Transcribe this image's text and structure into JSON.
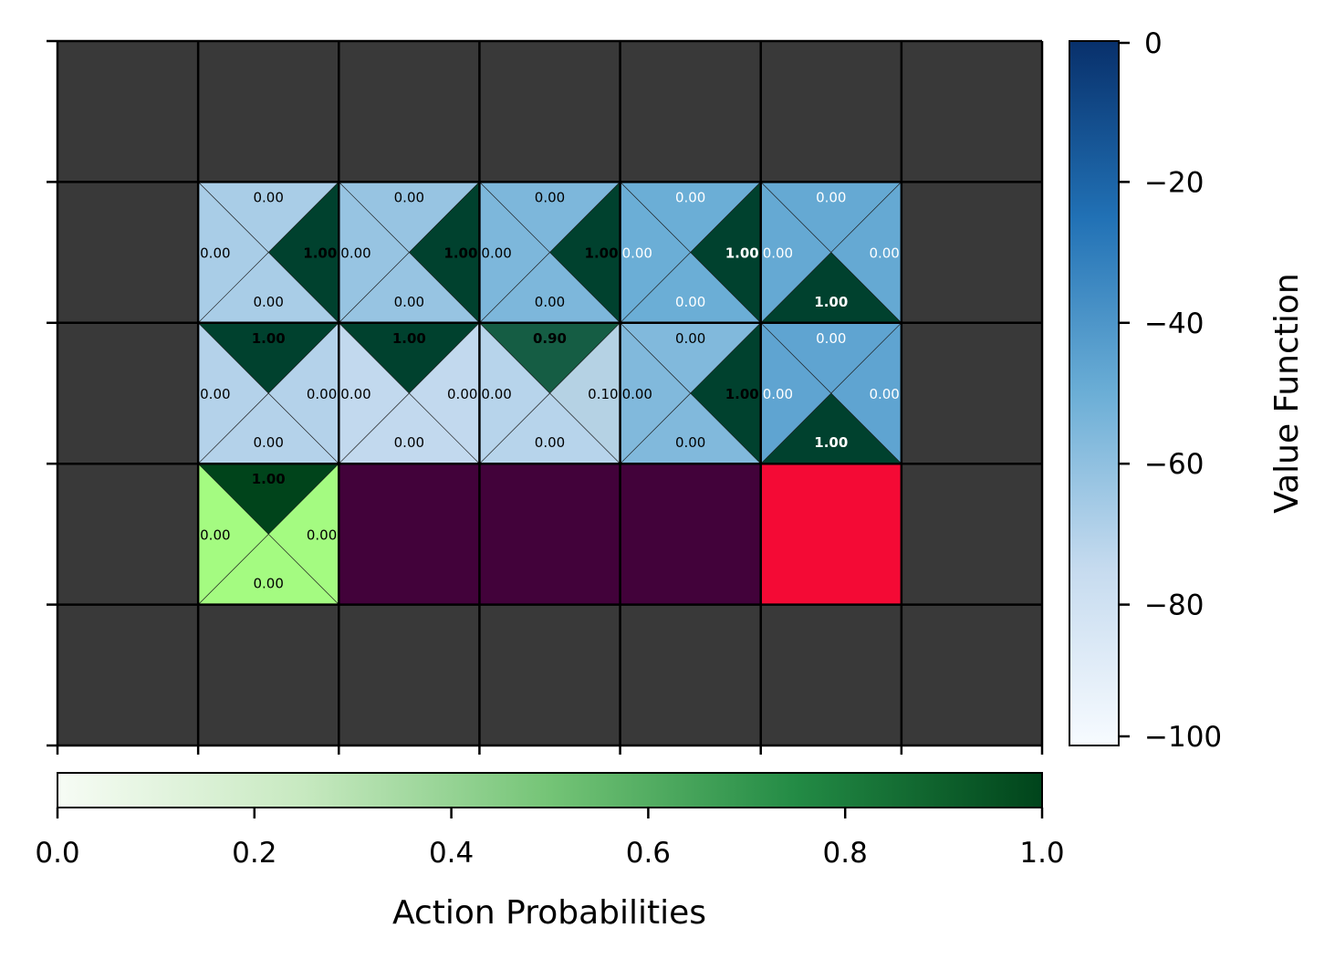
{
  "chart_data": {
    "type": "heatmap",
    "grid": {
      "rows": 5,
      "cols": 7
    },
    "wall_color": "#393939",
    "goal_color": "#f40a35",
    "cliff_color": "#42023a",
    "start_color": "#a4fb81",
    "action_order": [
      "up",
      "right",
      "down",
      "left"
    ],
    "cells": [
      {
        "row": 1,
        "col": 1,
        "kind": "state",
        "value": -67,
        "probs": [
          "0.00",
          "1.00",
          "0.00",
          "0.00"
        ],
        "best": "right"
      },
      {
        "row": 1,
        "col": 2,
        "kind": "state",
        "value": -62,
        "probs": [
          "0.00",
          "1.00",
          "0.00",
          "0.00"
        ],
        "best": "right"
      },
      {
        "row": 1,
        "col": 3,
        "kind": "state",
        "value": -55,
        "probs": [
          "0.00",
          "1.00",
          "0.00",
          "0.00"
        ],
        "best": "right"
      },
      {
        "row": 1,
        "col": 4,
        "kind": "state",
        "value": -50,
        "probs": [
          "0.00",
          "1.00",
          "0.00",
          "0.00"
        ],
        "best": "right"
      },
      {
        "row": 1,
        "col": 5,
        "kind": "state",
        "value": -48,
        "probs": [
          "0.00",
          "0.00",
          "1.00",
          "0.00"
        ],
        "best": "down"
      },
      {
        "row": 2,
        "col": 1,
        "kind": "state",
        "value": -70,
        "probs": [
          "1.00",
          "0.00",
          "0.00",
          "0.00"
        ],
        "best": "up"
      },
      {
        "row": 2,
        "col": 2,
        "kind": "state",
        "value": -74,
        "probs": [
          "1.00",
          "0.00",
          "0.00",
          "0.00"
        ],
        "best": "up"
      },
      {
        "row": 2,
        "col": 3,
        "kind": "state",
        "value": -71,
        "probs": [
          "0.90",
          "0.10",
          "0.00",
          "0.00"
        ],
        "best": "up"
      },
      {
        "row": 2,
        "col": 4,
        "kind": "state",
        "value": -56,
        "probs": [
          "0.00",
          "1.00",
          "0.00",
          "0.00"
        ],
        "best": "right"
      },
      {
        "row": 2,
        "col": 5,
        "kind": "state",
        "value": -46,
        "probs": [
          "0.00",
          "0.00",
          "1.00",
          "0.00"
        ],
        "best": "down"
      },
      {
        "row": 3,
        "col": 1,
        "kind": "start",
        "probs": [
          "1.00",
          "0.00",
          "0.00",
          "0.00"
        ],
        "best": "up"
      },
      {
        "row": 3,
        "col": 2,
        "kind": "cliff"
      },
      {
        "row": 3,
        "col": 3,
        "kind": "cliff"
      },
      {
        "row": 3,
        "col": 4,
        "kind": "cliff"
      },
      {
        "row": 3,
        "col": 5,
        "kind": "goal"
      }
    ],
    "value_colorbar": {
      "label": "Value Function",
      "range": [
        -100,
        0
      ],
      "ticks": [
        "0",
        "−20",
        "−40",
        "−60",
        "−80",
        "−100"
      ],
      "colormap": "Blues"
    },
    "prob_colorbar": {
      "label": "Action Probabilities",
      "range": [
        0,
        1
      ],
      "ticks": [
        "0.0",
        "0.2",
        "0.4",
        "0.6",
        "0.8",
        "1.0"
      ],
      "colormap": "Greens"
    }
  }
}
